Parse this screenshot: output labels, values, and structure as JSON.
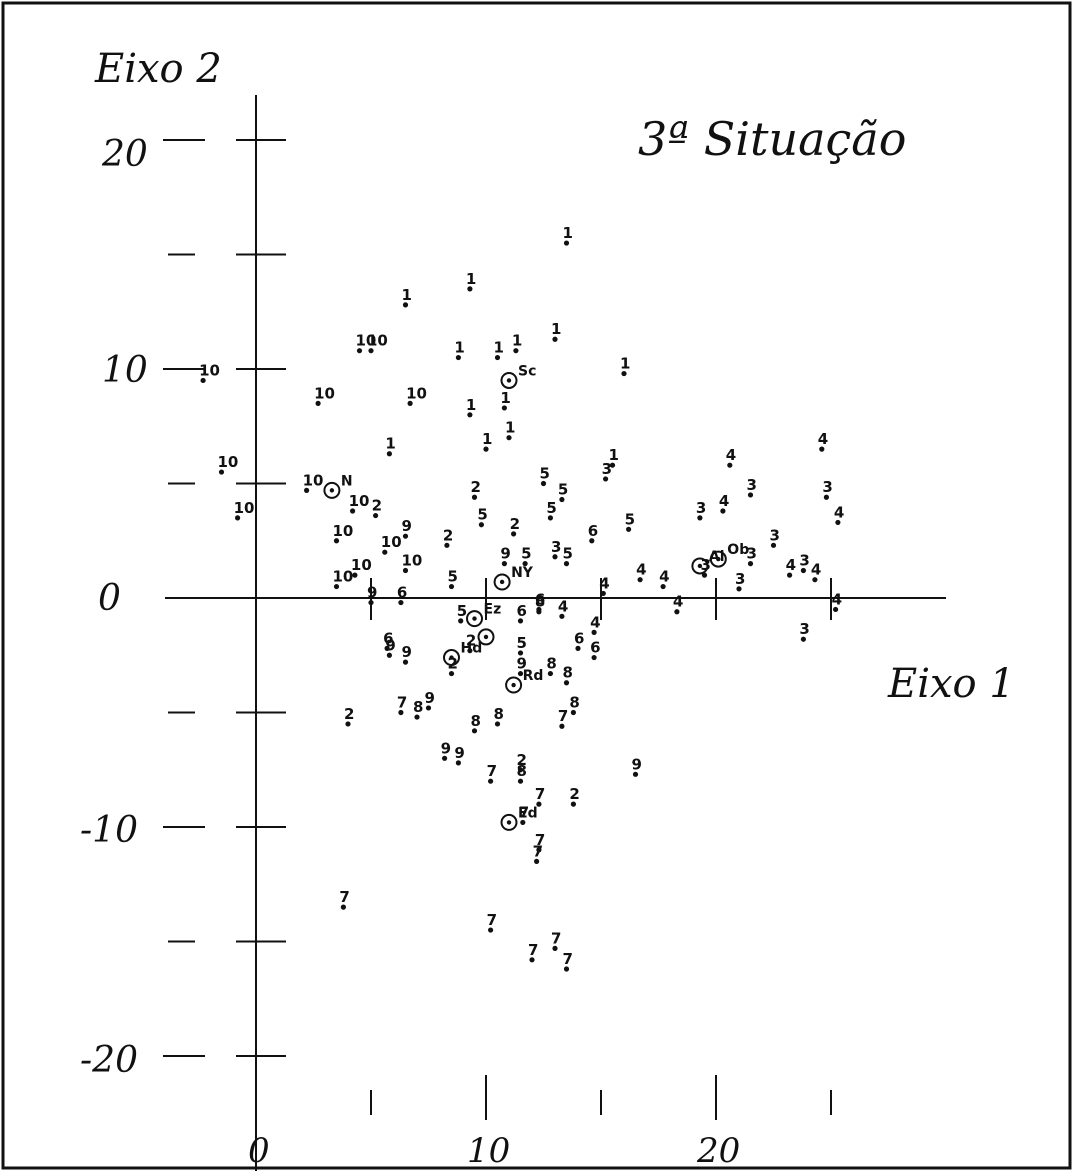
{
  "chart_data": {
    "type": "scatter",
    "title": "3ª Situação",
    "xlabel": "Eixo 1",
    "ylabel": "Eixo 2",
    "xlim": [
      -4,
      30
    ],
    "ylim": [
      -23,
      25
    ],
    "grid": false,
    "x_ticks": [
      "0",
      "10",
      "20"
    ],
    "y_ticks": [
      "20",
      "10",
      "0",
      "-10",
      "-20"
    ],
    "points": [
      {
        "x": 13.5,
        "y": 15.5,
        "label": "1"
      },
      {
        "x": 6.5,
        "y": 12.8,
        "label": "1"
      },
      {
        "x": 9.3,
        "y": 13.5,
        "label": "1"
      },
      {
        "x": 8.8,
        "y": 10.5,
        "label": "1"
      },
      {
        "x": 10.5,
        "y": 10.5,
        "label": "1"
      },
      {
        "x": 11.3,
        "y": 10.8,
        "label": "1"
      },
      {
        "x": 13.0,
        "y": 11.3,
        "label": "1"
      },
      {
        "x": 16.0,
        "y": 9.8,
        "label": "1"
      },
      {
        "x": 9.3,
        "y": 8.0,
        "label": "1"
      },
      {
        "x": 10.8,
        "y": 8.3,
        "label": "1"
      },
      {
        "x": 10.0,
        "y": 6.5,
        "label": "1"
      },
      {
        "x": 11.0,
        "y": 7.0,
        "label": "1"
      },
      {
        "x": 5.8,
        "y": 6.3,
        "label": "1"
      },
      {
        "x": 15.5,
        "y": 5.8,
        "label": "1"
      },
      {
        "x": 4.5,
        "y": 10.8,
        "label": "10"
      },
      {
        "x": 5.0,
        "y": 10.8,
        "label": "10"
      },
      {
        "x": -2.3,
        "y": 9.5,
        "label": "10"
      },
      {
        "x": 2.7,
        "y": 8.5,
        "label": "10"
      },
      {
        "x": 6.7,
        "y": 8.5,
        "label": "10"
      },
      {
        "x": -1.5,
        "y": 5.5,
        "label": "10"
      },
      {
        "x": -0.8,
        "y": 3.5,
        "label": "10"
      },
      {
        "x": 2.2,
        "y": 4.7,
        "label": "10"
      },
      {
        "x": 4.2,
        "y": 3.8,
        "label": "10"
      },
      {
        "x": 3.5,
        "y": 2.5,
        "label": "10"
      },
      {
        "x": 5.6,
        "y": 2.0,
        "label": "10"
      },
      {
        "x": 4.3,
        "y": 1.0,
        "label": "10"
      },
      {
        "x": 6.5,
        "y": 1.2,
        "label": "10"
      },
      {
        "x": 3.5,
        "y": 0.5,
        "label": "10"
      },
      {
        "x": 5.2,
        "y": 3.6,
        "label": "2"
      },
      {
        "x": 4.0,
        "y": -5.5,
        "label": "2"
      },
      {
        "x": 8.3,
        "y": 2.3,
        "label": "2"
      },
      {
        "x": 9.5,
        "y": 4.4,
        "label": "2"
      },
      {
        "x": 11.2,
        "y": 2.8,
        "label": "2"
      },
      {
        "x": 11.5,
        "y": -7.5,
        "label": "2"
      },
      {
        "x": 13.8,
        "y": -9.0,
        "label": "2"
      },
      {
        "x": 8.5,
        "y": -3.3,
        "label": "2"
      },
      {
        "x": 9.3,
        "y": -2.3,
        "label": "2"
      },
      {
        "x": 15.2,
        "y": 5.2,
        "label": "3"
      },
      {
        "x": 13.0,
        "y": 1.8,
        "label": "3"
      },
      {
        "x": 19.3,
        "y": 3.5,
        "label": "3"
      },
      {
        "x": 21.5,
        "y": 4.5,
        "label": "3"
      },
      {
        "x": 22.5,
        "y": 2.3,
        "label": "3"
      },
      {
        "x": 21.5,
        "y": 1.5,
        "label": "3"
      },
      {
        "x": 24.8,
        "y": 4.4,
        "label": "3"
      },
      {
        "x": 23.8,
        "y": 1.2,
        "label": "3"
      },
      {
        "x": 21.0,
        "y": 0.4,
        "label": "3"
      },
      {
        "x": 23.8,
        "y": -1.8,
        "label": "3"
      },
      {
        "x": 19.5,
        "y": 1.0,
        "label": "3"
      },
      {
        "x": 20.6,
        "y": 5.8,
        "label": "4"
      },
      {
        "x": 24.6,
        "y": 6.5,
        "label": "4"
      },
      {
        "x": 25.3,
        "y": 3.3,
        "label": "4"
      },
      {
        "x": 20.3,
        "y": 3.8,
        "label": "4"
      },
      {
        "x": 16.7,
        "y": 0.8,
        "label": "4"
      },
      {
        "x": 15.1,
        "y": 0.2,
        "label": "4"
      },
      {
        "x": 24.3,
        "y": 0.8,
        "label": "4"
      },
      {
        "x": 23.2,
        "y": 1.0,
        "label": "4"
      },
      {
        "x": 25.2,
        "y": -0.5,
        "label": "4"
      },
      {
        "x": 14.7,
        "y": -1.5,
        "label": "4"
      },
      {
        "x": 13.3,
        "y": -0.8,
        "label": "4"
      },
      {
        "x": 17.7,
        "y": 0.5,
        "label": "4"
      },
      {
        "x": 18.3,
        "y": -0.6,
        "label": "4"
      },
      {
        "x": 12.5,
        "y": 5.0,
        "label": "5"
      },
      {
        "x": 13.3,
        "y": 4.3,
        "label": "5"
      },
      {
        "x": 12.8,
        "y": 3.5,
        "label": "5"
      },
      {
        "x": 16.2,
        "y": 3.0,
        "label": "5"
      },
      {
        "x": 9.8,
        "y": 3.2,
        "label": "5"
      },
      {
        "x": 11.7,
        "y": 1.5,
        "label": "5"
      },
      {
        "x": 8.5,
        "y": 0.5,
        "label": "5"
      },
      {
        "x": 13.5,
        "y": 1.5,
        "label": "5"
      },
      {
        "x": 8.9,
        "y": -1.0,
        "label": "5"
      },
      {
        "x": 11.5,
        "y": -2.4,
        "label": "5"
      },
      {
        "x": 14.6,
        "y": 2.5,
        "label": "6"
      },
      {
        "x": 14.0,
        "y": -2.2,
        "label": "6"
      },
      {
        "x": 14.7,
        "y": -2.6,
        "label": "6"
      },
      {
        "x": 12.3,
        "y": -0.5,
        "label": "6"
      },
      {
        "x": 11.5,
        "y": -1.0,
        "label": "6"
      },
      {
        "x": 6.3,
        "y": -0.2,
        "label": "6"
      },
      {
        "x": 5.7,
        "y": -2.2,
        "label": "6"
      },
      {
        "x": 11.6,
        "y": -9.8,
        "label": "7"
      },
      {
        "x": 12.3,
        "y": -9.0,
        "label": "7"
      },
      {
        "x": 10.2,
        "y": -8.0,
        "label": "7"
      },
      {
        "x": 12.3,
        "y": -11.0,
        "label": "7"
      },
      {
        "x": 12.2,
        "y": -11.5,
        "label": "7"
      },
      {
        "x": 10.2,
        "y": -14.5,
        "label": "7"
      },
      {
        "x": 12.0,
        "y": -15.8,
        "label": "7"
      },
      {
        "x": 13.0,
        "y": -15.3,
        "label": "7"
      },
      {
        "x": 13.5,
        "y": -16.2,
        "label": "7"
      },
      {
        "x": 3.8,
        "y": -13.5,
        "label": "7"
      },
      {
        "x": 13.3,
        "y": -5.6,
        "label": "7"
      },
      {
        "x": 6.3,
        "y": -5.0,
        "label": "7"
      },
      {
        "x": 12.3,
        "y": -0.6,
        "label": "8"
      },
      {
        "x": 13.5,
        "y": -3.7,
        "label": "8"
      },
      {
        "x": 13.8,
        "y": -5.0,
        "label": "8"
      },
      {
        "x": 11.5,
        "y": -8.0,
        "label": "8"
      },
      {
        "x": 10.5,
        "y": -5.5,
        "label": "8"
      },
      {
        "x": 9.5,
        "y": -5.8,
        "label": "8"
      },
      {
        "x": 7.0,
        "y": -5.2,
        "label": "8"
      },
      {
        "x": 12.8,
        "y": -3.3,
        "label": "8"
      },
      {
        "x": 6.5,
        "y": 2.7,
        "label": "9"
      },
      {
        "x": 8.2,
        "y": -7.0,
        "label": "9"
      },
      {
        "x": 8.8,
        "y": -7.2,
        "label": "9"
      },
      {
        "x": 16.5,
        "y": -7.7,
        "label": "9"
      },
      {
        "x": 5.8,
        "y": -2.5,
        "label": "9"
      },
      {
        "x": 6.5,
        "y": -2.8,
        "label": "9"
      },
      {
        "x": 7.5,
        "y": -4.8,
        "label": "9"
      },
      {
        "x": 5.0,
        "y": -0.2,
        "label": "9"
      },
      {
        "x": 11.5,
        "y": -3.3,
        "label": "9"
      },
      {
        "x": 10.8,
        "y": 1.5,
        "label": "9"
      }
    ],
    "references": [
      {
        "x": 11.0,
        "y": 9.5,
        "label": "Sc"
      },
      {
        "x": 3.3,
        "y": 4.7,
        "label": "N"
      },
      {
        "x": 10.7,
        "y": 0.7,
        "label": "NY"
      },
      {
        "x": 9.5,
        "y": -0.9,
        "label": "Ez"
      },
      {
        "x": 10.0,
        "y": -1.7,
        "label": ""
      },
      {
        "x": 8.5,
        "y": -2.6,
        "label": "Hd"
      },
      {
        "x": 11.2,
        "y": -3.8,
        "label": "Rd"
      },
      {
        "x": 11.0,
        "y": -9.8,
        "label": "Ed"
      },
      {
        "x": 19.3,
        "y": 1.4,
        "label": "Al"
      },
      {
        "x": 20.1,
        "y": 1.7,
        "label": "Ob"
      }
    ]
  }
}
